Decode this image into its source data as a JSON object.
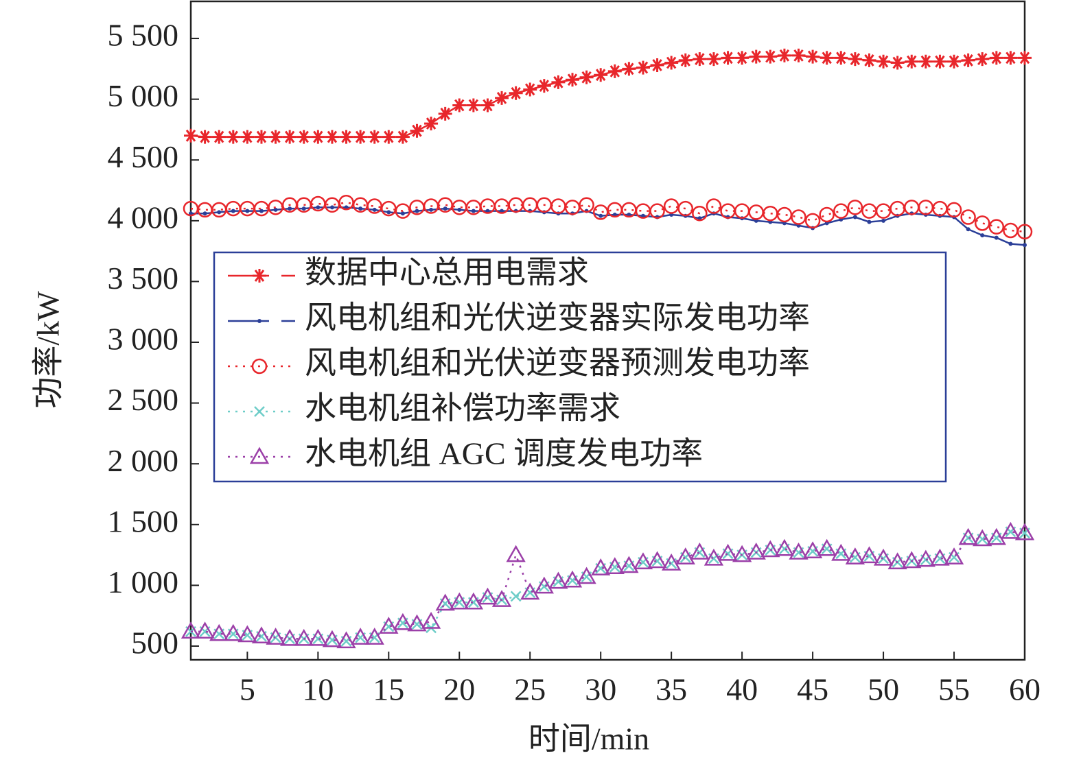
{
  "chart_data": {
    "type": "line",
    "xlabel": "时间/min",
    "ylabel": "功率/kW",
    "x": [
      1,
      2,
      3,
      4,
      5,
      6,
      7,
      8,
      9,
      10,
      11,
      12,
      13,
      14,
      15,
      16,
      17,
      18,
      19,
      20,
      21,
      22,
      23,
      24,
      25,
      26,
      27,
      28,
      29,
      30,
      31,
      32,
      33,
      34,
      35,
      36,
      37,
      38,
      39,
      40,
      41,
      42,
      43,
      44,
      45,
      46,
      47,
      48,
      49,
      50,
      51,
      52,
      53,
      54,
      55,
      56,
      57,
      58,
      59,
      60
    ],
    "xlim": [
      1,
      60
    ],
    "xticks": [
      5,
      10,
      15,
      20,
      25,
      30,
      35,
      40,
      45,
      50,
      55,
      60
    ],
    "ylim": [
      387,
      5805
    ],
    "yticks": [
      500,
      {
        "value": 1000,
        "label": "1 000"
      },
      {
        "value": 1500,
        "label": "1 500"
      },
      {
        "value": 2000,
        "label": "2 000"
      },
      {
        "value": 2500,
        "label": "2 500"
      },
      {
        "value": 3000,
        "label": "3 000"
      },
      {
        "value": 3500,
        "label": "3 500"
      },
      {
        "value": 4000,
        "label": "4 000"
      },
      {
        "value": 4500,
        "label": "4 500"
      },
      {
        "value": 5000,
        "label": "5 000"
      },
      {
        "value": 5500,
        "label": "5 500"
      }
    ],
    "legend": "center-left",
    "series": [
      {
        "name": "数据中心总用电需求",
        "color": "#e8262b",
        "line_style": "solid",
        "marker": "star",
        "values": [
          4700,
          4690,
          4690,
          4690,
          4690,
          4690,
          4690,
          4690,
          4690,
          4690,
          4690,
          4690,
          4690,
          4690,
          4690,
          4690,
          4740,
          4800,
          4880,
          4950,
          4950,
          4950,
          5010,
          5050,
          5080,
          5110,
          5140,
          5160,
          5180,
          5200,
          5230,
          5250,
          5260,
          5280,
          5300,
          5320,
          5330,
          5330,
          5340,
          5340,
          5350,
          5350,
          5360,
          5360,
          5350,
          5340,
          5340,
          5330,
          5320,
          5310,
          5300,
          5310,
          5310,
          5310,
          5310,
          5320,
          5330,
          5340,
          5340,
          5340
        ]
      },
      {
        "name": "风电机组和光伏逆变器实际发电功率",
        "color": "#2b3f98",
        "line_style": "solid",
        "marker": "dot",
        "values": [
          4060,
          4060,
          4070,
          4080,
          4080,
          4080,
          4090,
          4100,
          4100,
          4110,
          4110,
          4110,
          4100,
          4090,
          4070,
          4060,
          4080,
          4090,
          4100,
          4090,
          4080,
          4080,
          4080,
          4080,
          4080,
          4070,
          4060,
          4060,
          4080,
          4040,
          4050,
          4050,
          4040,
          4030,
          4050,
          4040,
          4020,
          4060,
          4030,
          4020,
          4000,
          3990,
          3980,
          3960,
          3940,
          3980,
          4010,
          4030,
          3990,
          4000,
          4040,
          4060,
          4050,
          4040,
          4030,
          3930,
          3880,
          3860,
          3810,
          3800
        ]
      },
      {
        "name": "风电机组和光伏逆变器预测发电功率",
        "color": "#e8262b",
        "line_style": "dotted",
        "marker": "circle",
        "values": [
          4100,
          4090,
          4090,
          4100,
          4100,
          4100,
          4110,
          4130,
          4130,
          4140,
          4130,
          4150,
          4130,
          4120,
          4100,
          4080,
          4110,
          4120,
          4130,
          4110,
          4110,
          4120,
          4120,
          4130,
          4130,
          4130,
          4120,
          4110,
          4130,
          4070,
          4090,
          4090,
          4080,
          4080,
          4120,
          4100,
          4060,
          4120,
          4080,
          4080,
          4070,
          4060,
          4050,
          4030,
          4000,
          4050,
          4080,
          4110,
          4080,
          4080,
          4100,
          4110,
          4110,
          4100,
          4090,
          4030,
          3980,
          3950,
          3920,
          3910
        ]
      },
      {
        "name": "水电机组补偿功率需求",
        "color": "#6dcdc8",
        "line_style": "dotted",
        "marker": "x",
        "values": [
          620,
          620,
          600,
          600,
          590,
          580,
          570,
          560,
          560,
          560,
          550,
          540,
          570,
          570,
          660,
          690,
          680,
          650,
          850,
          860,
          860,
          900,
          880,
          910,
          940,
          990,
          1030,
          1040,
          1070,
          1140,
          1150,
          1160,
          1190,
          1200,
          1180,
          1230,
          1270,
          1220,
          1260,
          1250,
          1270,
          1290,
          1300,
          1270,
          1280,
          1300,
          1260,
          1230,
          1240,
          1220,
          1190,
          1200,
          1210,
          1220,
          1230,
          1390,
          1380,
          1390,
          1440,
          1430
        ]
      },
      {
        "name": "水电机组 AGC 调度发电功率",
        "color": "#9b3fa8",
        "line_style": "dotted",
        "marker": "triangle",
        "values": [
          620,
          620,
          600,
          600,
          590,
          580,
          570,
          560,
          560,
          560,
          550,
          540,
          570,
          570,
          660,
          690,
          680,
          700,
          850,
          860,
          860,
          900,
          880,
          1250,
          940,
          990,
          1030,
          1040,
          1070,
          1140,
          1150,
          1160,
          1190,
          1200,
          1180,
          1230,
          1270,
          1220,
          1260,
          1250,
          1270,
          1290,
          1300,
          1270,
          1280,
          1300,
          1260,
          1230,
          1240,
          1220,
          1190,
          1200,
          1210,
          1220,
          1230,
          1390,
          1380,
          1390,
          1440,
          1430
        ]
      }
    ]
  }
}
